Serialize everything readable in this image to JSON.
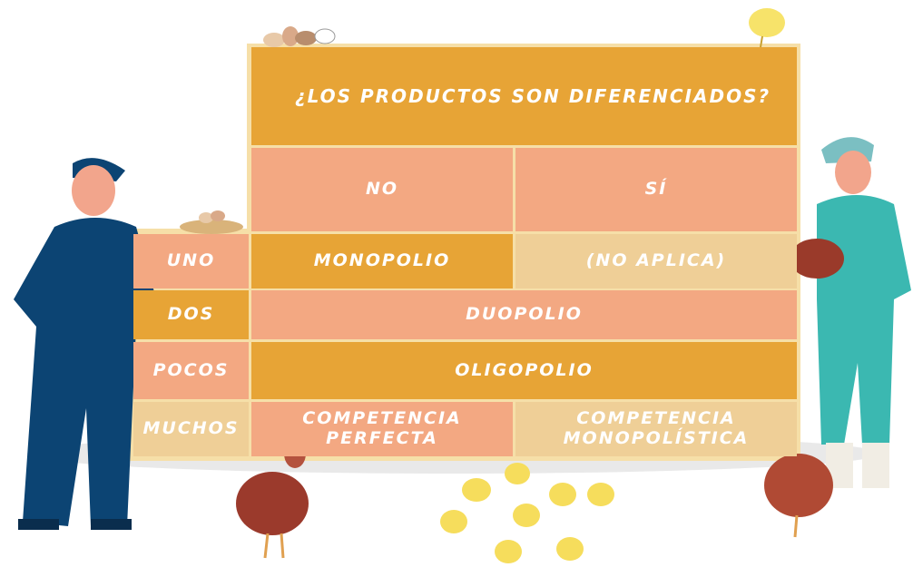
{
  "table": {
    "title": "¿LOS PRODUCTOS SON DIFERENCIADOS?",
    "columns": [
      "NO",
      "SÍ"
    ],
    "rows": [
      {
        "label": "UNO",
        "cells": [
          "MONOPOLIO",
          "(NO APLICA)"
        ]
      },
      {
        "label": "DOS",
        "cells": [
          "DUOPOLIO"
        ]
      },
      {
        "label": "POCOS",
        "cells": [
          "OLIGOPOLIO"
        ]
      },
      {
        "label": "MUCHOS",
        "cells": [
          "COMPETENCIA PERFECTA",
          "COMPETENCIA MONOPOLÍSTICA"
        ]
      }
    ]
  }
}
